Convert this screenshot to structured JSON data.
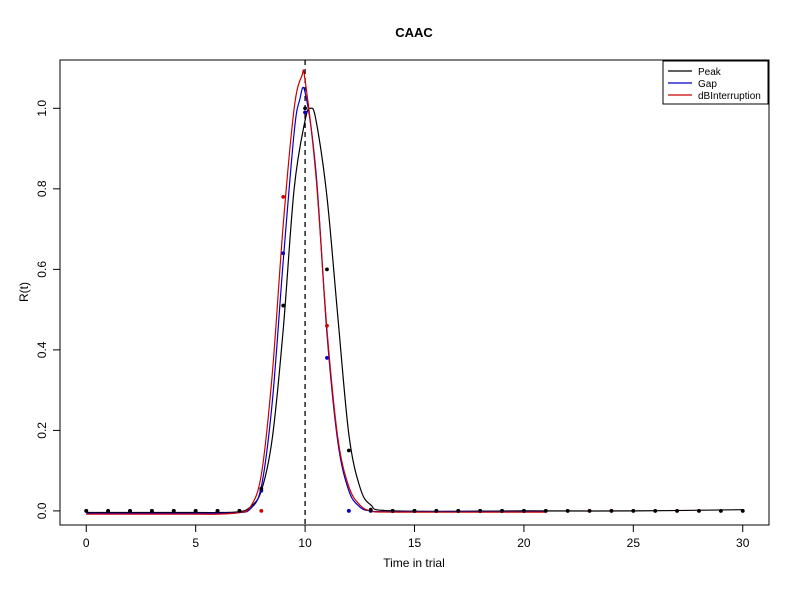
{
  "chart_data": {
    "type": "line",
    "title": "CAAC",
    "xlabel": "Time in trial",
    "ylabel": "R(t)",
    "xlim": [
      -1.2,
      31.2
    ],
    "ylim": [
      -0.035,
      1.12
    ],
    "x_ticks": [
      0,
      5,
      10,
      15,
      20,
      25,
      30
    ],
    "x_tick_labels": [
      "0",
      "5",
      "10",
      "15",
      "20",
      "25",
      "30"
    ],
    "y_ticks": [
      0.0,
      0.2,
      0.4,
      0.6,
      0.8,
      1.0
    ],
    "y_tick_labels": [
      "0.0",
      "0.2",
      "0.4",
      "0.6",
      "0.8",
      "1.0"
    ],
    "vline": {
      "x": 10,
      "style": "dashed"
    },
    "legend": {
      "placement": "top-right"
    },
    "series": [
      {
        "name": "Peak",
        "color": "#000000",
        "x": [
          0,
          5,
          6,
          7,
          7.5,
          8,
          8.5,
          9,
          9.5,
          10,
          10.25,
          10.5,
          11,
          11.5,
          12,
          12.5,
          13,
          14,
          20,
          25,
          30
        ],
        "y": [
          -0.004,
          -0.004,
          -0.004,
          -0.002,
          0.01,
          0.05,
          0.18,
          0.45,
          0.8,
          0.97,
          1.0,
          0.97,
          0.78,
          0.48,
          0.19,
          0.06,
          0.015,
          0.0,
          0.0,
          0.0,
          0.003
        ]
      },
      {
        "name": "Gap",
        "color": "#0000cc",
        "x": [
          0,
          5,
          6,
          7,
          7.5,
          8,
          8.5,
          9,
          9.5,
          9.75,
          10,
          10.5,
          11,
          11.5,
          12,
          12.5,
          13,
          14,
          20,
          21
        ],
        "y": [
          -0.006,
          -0.006,
          -0.006,
          -0.004,
          0.005,
          0.06,
          0.27,
          0.62,
          0.94,
          1.02,
          1.04,
          0.84,
          0.44,
          0.17,
          0.05,
          0.01,
          0.0,
          -0.002,
          -0.002,
          -0.002
        ]
      },
      {
        "name": "dBInterruption",
        "color": "#cc0000",
        "x": [
          0,
          5,
          6,
          7,
          7.5,
          8,
          8.5,
          9,
          9.5,
          9.85,
          10,
          10.5,
          11,
          11.5,
          12,
          12.5,
          13,
          14,
          20,
          21
        ],
        "y": [
          -0.008,
          -0.008,
          -0.008,
          -0.004,
          0.01,
          0.09,
          0.34,
          0.71,
          1.0,
          1.08,
          1.07,
          0.83,
          0.45,
          0.18,
          0.06,
          0.015,
          0.0,
          -0.003,
          -0.003,
          -0.003
        ]
      }
    ],
    "points": {
      "color": "#000000",
      "x": [
        0,
        1,
        2,
        3,
        4,
        5,
        6,
        7,
        8,
        9,
        10,
        11,
        12,
        13,
        14,
        15,
        16,
        17,
        18,
        19,
        20,
        21,
        22,
        23,
        24,
        25,
        26,
        27,
        28,
        29,
        30
      ],
      "y": [
        0.0,
        0.0,
        0.0,
        0.0,
        0.0,
        0.0,
        0.0,
        0.0,
        0.055,
        0.51,
        1.0,
        0.6,
        0.15,
        0.003,
        0.0,
        0.0,
        0.0,
        0.0,
        0.0,
        0.0,
        0.0,
        0.0,
        0.0,
        0.0,
        0.0,
        0.0,
        0.0,
        0.0,
        0.0,
        0.0,
        0.0
      ]
    },
    "points_red": {
      "color": "#cc0000",
      "x": [
        0,
        1,
        2,
        3,
        4,
        5,
        6,
        7,
        8,
        9,
        10,
        11,
        12,
        13,
        14,
        15,
        16,
        17,
        18,
        19,
        20,
        21,
        22,
        23,
        24,
        25,
        26,
        27,
        28,
        29,
        30
      ],
      "y": [
        0.0,
        0.0,
        0.0,
        0.0,
        0.0,
        0.0,
        0.0,
        0.0,
        0.0,
        0.78,
        0.99,
        0.46,
        0.0,
        0.0,
        0.0,
        0.0,
        0.0,
        0.0,
        0.0,
        0.0,
        0.0,
        0.0,
        0.0,
        0.0,
        0.0,
        0.0,
        0.0,
        0.0,
        0.0,
        0.0,
        0.0
      ]
    },
    "points_blue": {
      "color": "#0000cc",
      "x": [
        0,
        1,
        2,
        3,
        4,
        5,
        6,
        7,
        8,
        9,
        10,
        11,
        12,
        13,
        14,
        15,
        16,
        17,
        18,
        19,
        20
      ],
      "y": [
        0.0,
        0.0,
        0.0,
        0.0,
        0.0,
        0.0,
        0.0,
        0.0,
        0.05,
        0.64,
        0.99,
        0.38,
        0.0,
        0.0,
        0.0,
        0.0,
        0.0,
        0.0,
        0.0,
        0.0,
        0.0
      ]
    }
  }
}
